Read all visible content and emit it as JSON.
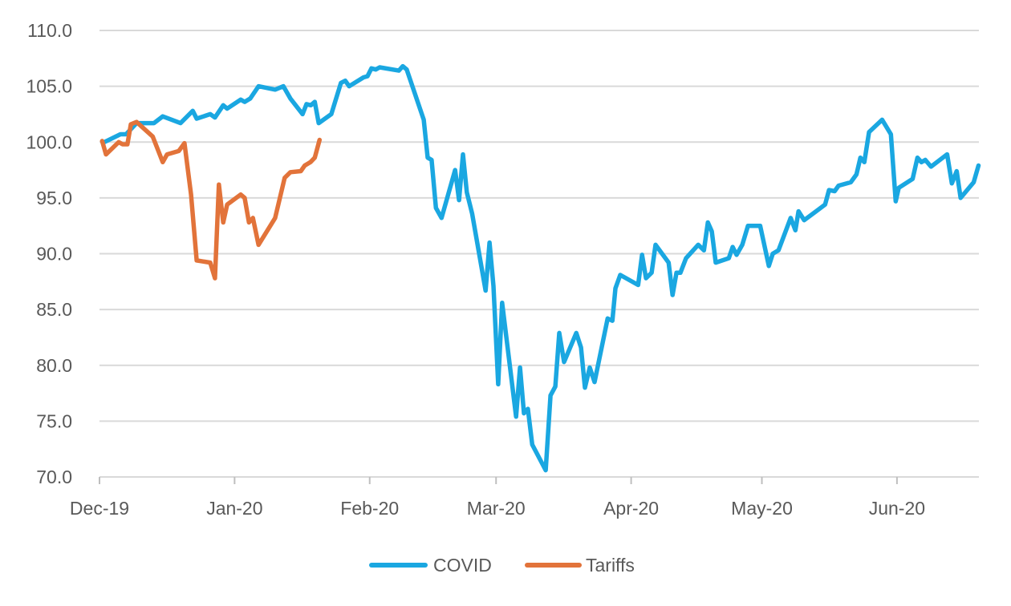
{
  "chart_data": {
    "type": "line",
    "title": "",
    "xlabel": "",
    "ylabel": "",
    "x_unit": "days since 1 Dec 2019",
    "xlim": [
      0,
      201.8
    ],
    "ylim": [
      70,
      110
    ],
    "y_ticks": [
      "70.0",
      "75.0",
      "80.0",
      "85.0",
      "90.0",
      "95.0",
      "100.0",
      "105.0",
      "110.0"
    ],
    "x_ticks": [
      {
        "day": 0,
        "label": "Dec-19"
      },
      {
        "day": 31,
        "label": "Jan-20"
      },
      {
        "day": 62,
        "label": "Feb-20"
      },
      {
        "day": 91,
        "label": "Mar-20"
      },
      {
        "day": 122,
        "label": "Apr-20"
      },
      {
        "day": 152,
        "label": "May-20"
      },
      {
        "day": 183,
        "label": "Jun-20"
      }
    ],
    "grid": true,
    "legend_position": "bottom",
    "series": [
      {
        "name": "COVID",
        "color": "#1AA7E1",
        "x": [
          1.1,
          4.8,
          6.1,
          8.5,
          12.5,
          14.5,
          18.6,
          21.4,
          22.3,
          25.4,
          26.5,
          28.4,
          29.3,
          32.4,
          33.3,
          34.6,
          36.5,
          40.3,
          42.2,
          43.8,
          46.6,
          47.5,
          48.5,
          49.4,
          50.3,
          53.2,
          55.4,
          56.4,
          57.3,
          60.6,
          61.5,
          62.4,
          63.4,
          64.3,
          68.7,
          69.6,
          70.5,
          74.4,
          75.3,
          76.2,
          77.2,
          78.5,
          81.6,
          82.5,
          83.4,
          84.3,
          85.5,
          88.6,
          89.5,
          90.4,
          91.5,
          92.4,
          95.6,
          96.5,
          97.4,
          98.3,
          99.3,
          102.4,
          103.5,
          104.6,
          105.5,
          106.6,
          109.4,
          110.5,
          111.4,
          112.5,
          113.6,
          116.6,
          117.7,
          118.4,
          119.5,
          123.6,
          124.5,
          125.4,
          126.7,
          127.6,
          130.6,
          131.5,
          132.4,
          133.3,
          134.6,
          137.4,
          138.7,
          139.6,
          140.5,
          141.4,
          144.4,
          145.3,
          146.2,
          147.5,
          148.8,
          151.6,
          153.6,
          154.5,
          155.8,
          158.6,
          159.7,
          160.4,
          161.7,
          166.5,
          167.4,
          168.7,
          169.6,
          172.4,
          173.7,
          174.6,
          175.5,
          176.6,
          179.6,
          181.6,
          182.7,
          183.4,
          186.6,
          187.7,
          188.6,
          189.5,
          190.8,
          194.5,
          195.6,
          196.7,
          197.6,
          200.6,
          201.7
        ],
        "y": [
          100.0,
          100.7,
          100.7,
          101.7,
          101.7,
          102.3,
          101.7,
          102.8,
          102.1,
          102.5,
          102.2,
          103.3,
          103.0,
          103.8,
          103.6,
          103.9,
          105.0,
          104.7,
          105.0,
          103.9,
          102.5,
          103.4,
          103.3,
          103.6,
          101.7,
          102.5,
          105.3,
          105.5,
          105.0,
          105.8,
          105.9,
          106.6,
          106.5,
          106.7,
          106.4,
          106.8,
          106.5,
          102.0,
          98.6,
          98.4,
          94.1,
          93.2,
          97.5,
          94.8,
          98.9,
          95.5,
          93.6,
          86.7,
          91.0,
          87.1,
          78.3,
          85.6,
          75.4,
          79.8,
          75.7,
          76.1,
          72.9,
          70.6,
          77.3,
          78.1,
          82.9,
          80.3,
          82.9,
          81.6,
          78.0,
          79.8,
          78.5,
          84.2,
          84.0,
          86.9,
          88.1,
          87.2,
          89.9,
          87.8,
          88.3,
          90.8,
          89.2,
          86.3,
          88.3,
          88.3,
          89.6,
          90.8,
          90.3,
          92.8,
          92.0,
          89.2,
          89.6,
          90.6,
          89.9,
          90.8,
          92.5,
          92.5,
          88.9,
          90.0,
          90.3,
          93.2,
          92.1,
          93.8,
          93.0,
          94.4,
          95.7,
          95.6,
          96.1,
          96.4,
          97.1,
          98.6,
          98.2,
          100.9,
          102.0,
          100.7,
          94.7,
          95.9,
          96.7,
          98.6,
          98.2,
          98.4,
          97.8,
          98.9,
          96.3,
          97.4,
          95.0,
          96.4,
          97.9
        ]
      },
      {
        "name": "Tariffs",
        "color": "#E2733A",
        "x": [
          0.6,
          1.5,
          4.4,
          5.3,
          6.4,
          7.2,
          8.5,
          12.2,
          14.5,
          15.5,
          18.2,
          19.5,
          21.0,
          22.3,
          25.4,
          26.5,
          27.4,
          28.4,
          29.3,
          32.4,
          33.3,
          34.3,
          35.2,
          36.5,
          40.3,
          42.5,
          43.8,
          46.2,
          47.1,
          48.4,
          49.4,
          50.5
        ],
        "y": [
          100.1,
          98.9,
          100.0,
          99.8,
          99.8,
          101.6,
          101.8,
          100.5,
          98.2,
          98.9,
          99.2,
          99.9,
          95.3,
          89.4,
          89.2,
          87.8,
          96.2,
          92.8,
          94.4,
          95.3,
          95.0,
          92.8,
          93.2,
          90.8,
          93.2,
          96.8,
          97.3,
          97.4,
          97.9,
          98.2,
          98.6,
          100.2
        ]
      }
    ]
  }
}
